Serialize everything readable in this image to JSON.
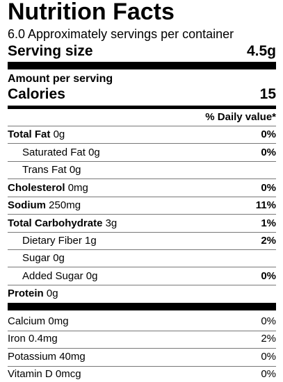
{
  "title": "Nutrition Facts",
  "servings": "6.0 Approximately servings per container",
  "serving_size": {
    "label": "Serving size",
    "value": "4.5g"
  },
  "amount_per_serving": "Amount per serving",
  "calories": {
    "label": "Calories",
    "value": "15"
  },
  "daily_value_header": "% Daily value*",
  "nutrients": [
    {
      "name": "Total Fat",
      "amount": "0g",
      "dv": "0%"
    },
    {
      "name": "Saturated Fat",
      "amount": "0g",
      "dv": "0%"
    },
    {
      "name": "Trans Fat",
      "amount": "0g",
      "dv": ""
    },
    {
      "name": "Cholesterol",
      "amount": "0mg",
      "dv": "0%"
    },
    {
      "name": "Sodium",
      "amount": "250mg",
      "dv": "11%"
    },
    {
      "name": "Total Carbohydrate",
      "amount": "3g",
      "dv": "1%"
    },
    {
      "name": "Dietary Fiber",
      "amount": "1g",
      "dv": "2%"
    },
    {
      "name": "Sugar",
      "amount": "0g",
      "dv": ""
    },
    {
      "name": "Added Sugar",
      "amount": "0g",
      "dv": "0%"
    },
    {
      "name": "Protein",
      "amount": "0g",
      "dv": ""
    }
  ],
  "vitamins": [
    {
      "name": "Calcium",
      "amount": "0mg",
      "dv": "0%"
    },
    {
      "name": "Iron",
      "amount": "0.4mg",
      "dv": "2%"
    },
    {
      "name": "Potassium",
      "amount": "40mg",
      "dv": "0%"
    },
    {
      "name": "Vitamin D",
      "amount": "0mcg",
      "dv": "0%"
    }
  ]
}
